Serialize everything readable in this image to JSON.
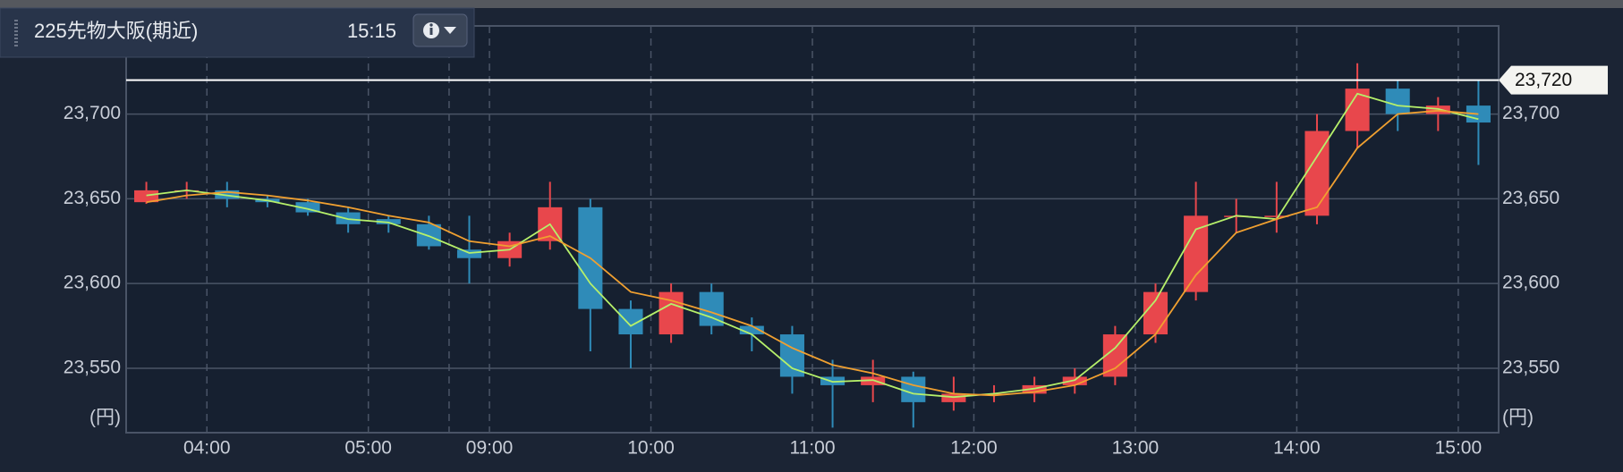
{
  "chart_data": {
    "type": "candlestick",
    "title": "225先物大阪(期近)",
    "subtitle": "15:15",
    "unit_label": "(円)",
    "categories": [
      null,
      null,
      "04:00",
      null,
      null,
      null,
      "05:00",
      null,
      null,
      "09:00",
      null,
      null,
      null,
      "10:00",
      null,
      null,
      null,
      "11:00",
      null,
      null,
      null,
      "12:00",
      null,
      null,
      null,
      "13:00",
      null,
      null,
      null,
      "14:00",
      null,
      null,
      null,
      "15:00"
    ],
    "open": [
      23648,
      23655,
      23655,
      23650,
      23648,
      23642,
      23638,
      23635,
      23620,
      23615,
      23625,
      23645,
      23585,
      23570,
      23595,
      23575,
      23570,
      23545,
      23540,
      23545,
      23530,
      23535,
      23535,
      23540,
      23545,
      23570,
      23595,
      23640,
      23640,
      23640,
      23690,
      23715,
      23700,
      23705
    ],
    "high": [
      23660,
      23660,
      23660,
      23652,
      23650,
      23645,
      23640,
      23640,
      23640,
      23630,
      23660,
      23650,
      23590,
      23600,
      23600,
      23580,
      23575,
      23555,
      23555,
      23548,
      23545,
      23540,
      23545,
      23550,
      23575,
      23600,
      23660,
      23650,
      23660,
      23700,
      23730,
      23720,
      23710,
      23720
    ],
    "low": [
      23647,
      23650,
      23645,
      23645,
      23640,
      23630,
      23630,
      23620,
      23600,
      23610,
      23620,
      23560,
      23550,
      23565,
      23570,
      23560,
      23535,
      23515,
      23530,
      23515,
      23525,
      23530,
      23530,
      23535,
      23540,
      23565,
      23590,
      23630,
      23630,
      23635,
      23680,
      23690,
      23690,
      23670
    ],
    "close": [
      23655,
      23655,
      23650,
      23648,
      23642,
      23635,
      23635,
      23622,
      23615,
      23625,
      23645,
      23585,
      23570,
      23595,
      23575,
      23570,
      23545,
      23540,
      23545,
      23530,
      23535,
      23535,
      23540,
      23545,
      23570,
      23595,
      23640,
      23640,
      23640,
      23690,
      23715,
      23700,
      23705,
      23695
    ],
    "up_color": "#e8474c",
    "down_color": "#2f8bb8",
    "lines": [
      {
        "color": "#b6f06a",
        "values": [
          23652,
          23655,
          23652,
          23649,
          23644,
          23638,
          23636,
          23628,
          23618,
          23620,
          23635,
          23600,
          23575,
          23588,
          23580,
          23570,
          23550,
          23542,
          23543,
          23535,
          23533,
          23535,
          23538,
          23543,
          23562,
          23590,
          23632,
          23640,
          23638,
          23675,
          23712,
          23705,
          23703,
          23697
        ]
      },
      {
        "color": "#f0a030",
        "values": [
          23648,
          23652,
          23654,
          23652,
          23649,
          23645,
          23640,
          23636,
          23625,
          23622,
          23628,
          23615,
          23595,
          23590,
          23583,
          23575,
          23562,
          23552,
          23547,
          23540,
          23535,
          23534,
          23536,
          23540,
          23550,
          23570,
          23605,
          23630,
          23638,
          23645,
          23680,
          23700,
          23702,
          23700
        ]
      }
    ],
    "ylim": [
      23512,
      23752
    ],
    "yticks": [
      {
        "value": 23550,
        "label": "23,550"
      },
      {
        "value": 23600,
        "label": "23,600"
      },
      {
        "value": 23650,
        "label": "23,650"
      },
      {
        "value": 23700,
        "label": "23,700"
      }
    ],
    "price_line": {
      "value": 23720,
      "label": "23,720"
    },
    "grid": true
  }
}
